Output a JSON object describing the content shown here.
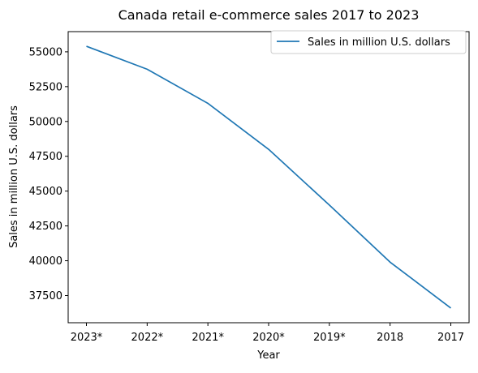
{
  "chart_data": {
    "type": "line",
    "title": "Canada retail e-commerce sales 2017 to 2023",
    "xlabel": "Year",
    "ylabel": "Sales in million U.S. dollars",
    "categories": [
      "2023*",
      "2022*",
      "2021*",
      "2020*",
      "2019*",
      "2018",
      "2017"
    ],
    "series": [
      {
        "name": "Sales in million U.S. dollars",
        "values": [
          55400,
          53750,
          51300,
          48000,
          44000,
          39900,
          36600
        ],
        "color": "#1f77b4"
      }
    ],
    "ylim": [
      35550,
      56450
    ],
    "yticks": [
      37500,
      40000,
      42500,
      45000,
      47500,
      50000,
      52500,
      55000
    ],
    "grid": false,
    "legend": "top-right"
  }
}
